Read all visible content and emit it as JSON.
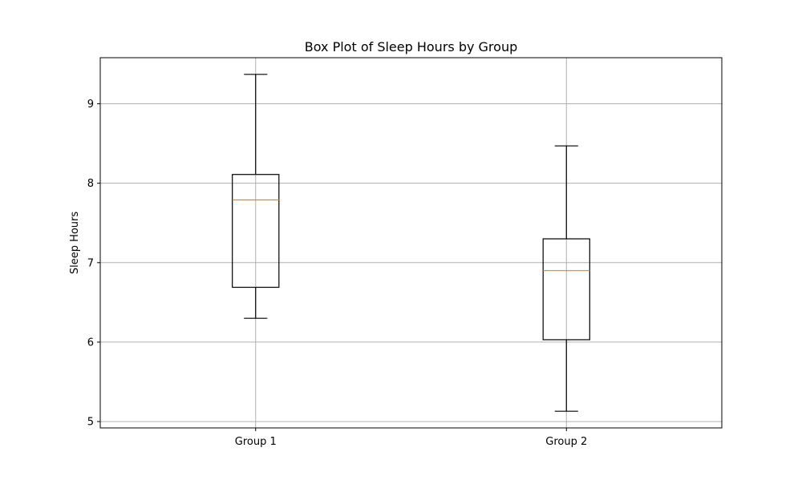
{
  "chart_data": {
    "type": "box",
    "title": "Box Plot of Sleep Hours by Group",
    "xlabel": "",
    "ylabel": "Sleep Hours",
    "categories": [
      "Group 1",
      "Group 2"
    ],
    "boxes": [
      {
        "category": "Group 1",
        "whisker_low": 6.3,
        "q1": 6.69,
        "median": 7.79,
        "q3": 8.11,
        "whisker_high": 9.37
      },
      {
        "category": "Group 2",
        "whisker_low": 5.13,
        "q1": 6.03,
        "median": 6.9,
        "q3": 7.3,
        "whisker_high": 8.47
      }
    ],
    "yticks": [
      5,
      6,
      7,
      8,
      9
    ],
    "ylim": [
      4.92,
      9.58
    ],
    "grid": true,
    "colors": {
      "box": "#000000",
      "median": "#ff7f0e",
      "grid": "#b0b0b0"
    }
  }
}
